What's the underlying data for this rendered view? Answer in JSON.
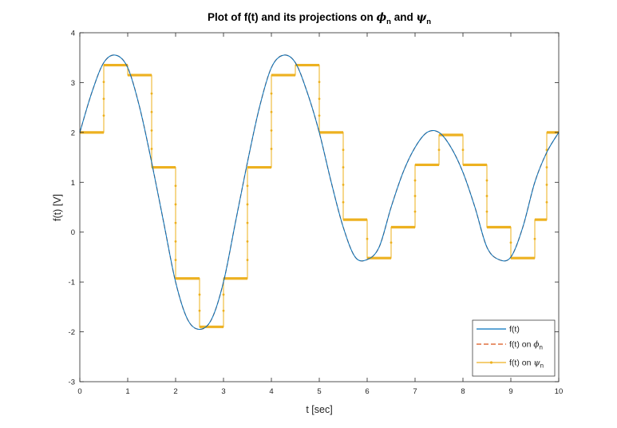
{
  "chart_data": {
    "type": "line",
    "title": {
      "prefix": "Plot of f(t) and its projections on ",
      "sym1": "ϕ",
      "sub1": "n",
      "middle": " and ",
      "sym2": "ψ",
      "sub2": "n"
    },
    "xlabel": "t [sec]",
    "ylabel": "f(t) [V]",
    "xlim": [
      0,
      10
    ],
    "ylim": [
      -3,
      4
    ],
    "xticks": [
      0,
      1,
      2,
      3,
      4,
      5,
      6,
      7,
      8,
      9,
      10
    ],
    "yticks": [
      -3,
      -2,
      -1,
      0,
      1,
      2,
      3,
      4
    ],
    "grid": false,
    "legend_position": "bottom-right",
    "series": [
      {
        "name": "f(t)",
        "legend_prefix": "f(t)",
        "color": "#0072BD",
        "style": "solid",
        "function": "f(t) = 2 + 1.5 sin(1.786 t) + 0.5 sin(3.571 t)",
        "x": [
          0,
          0.25,
          0.5,
          0.75,
          1,
          1.25,
          1.5,
          1.75,
          2,
          2.25,
          2.5,
          2.75,
          3,
          3.25,
          3.5,
          3.75,
          4,
          4.25,
          4.5,
          4.75,
          5,
          5.25,
          5.5,
          5.75,
          6,
          6.25,
          6.5,
          6.75,
          7,
          7.25,
          7.5,
          7.75,
          8,
          8.25,
          8.5,
          8.75,
          9,
          9.25,
          9.5,
          9.75,
          10
        ],
        "y": [
          2.0,
          2.8,
          3.4,
          3.55,
          3.3,
          2.5,
          1.4,
          0.2,
          -1.0,
          -1.75,
          -1.95,
          -1.75,
          -1.0,
          0.2,
          1.4,
          2.5,
          3.3,
          3.55,
          3.4,
          2.8,
          2.0,
          1.0,
          0.1,
          -0.5,
          -0.55,
          -0.3,
          0.5,
          1.2,
          1.7,
          2.0,
          2.0,
          1.7,
          1.2,
          0.5,
          -0.3,
          -0.55,
          -0.5,
          0.1,
          1.0,
          1.6,
          2.0
        ]
      },
      {
        "name": "f(t) on ϕn",
        "legend_prefix": "f(t) on ",
        "legend_sym": "ϕ",
        "legend_sub": "n",
        "color": "#D95319",
        "style": "dashed",
        "note": "overlaps f(t)"
      },
      {
        "name": "f(t) on ψn",
        "legend_prefix": "f(t) on ",
        "legend_sym": "ψ",
        "legend_sub": "n",
        "color": "#EDB120",
        "style": "step-with-markers",
        "step_width": 0.5,
        "step_x": [
          0,
          0.5,
          1,
          1.5,
          2,
          2.5,
          3,
          3.5,
          4,
          4.5,
          5,
          5.5,
          6,
          6.5,
          7,
          7.5,
          8,
          8.5,
          9,
          9.5
        ],
        "step_y": [
          2.0,
          3.35,
          3.15,
          1.3,
          -0.93,
          -1.9,
          -0.93,
          1.3,
          3.15,
          3.35,
          2.0,
          0.25,
          -0.52,
          0.1,
          1.35,
          1.95,
          1.35,
          0.1,
          -0.52,
          0.25
        ]
      },
      {
        "name": "final-segment",
        "color": "#EDB120",
        "step_x": [
          9.75
        ],
        "step_y": [
          2.0
        ],
        "step_end": 10
      }
    ]
  }
}
